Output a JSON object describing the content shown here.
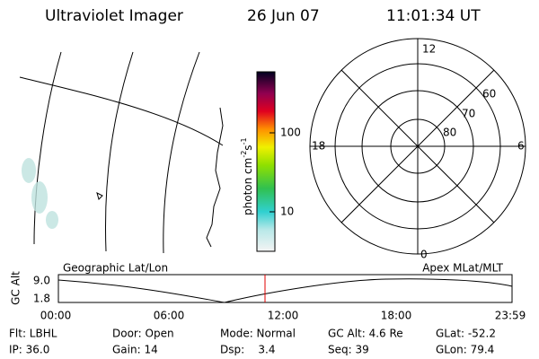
{
  "header": {
    "instrument": "Ultraviolet Imager",
    "date": "26 Jun 07",
    "time": "11:01:34 UT"
  },
  "colorbar": {
    "unit": "photon cm",
    "exp1": "-2",
    "unit2": "s",
    "exp2": "-1",
    "ticks": [
      "100",
      "10"
    ]
  },
  "polar": {
    "mlt_labels": [
      "12",
      "18",
      "6",
      "0"
    ],
    "lat_labels": [
      "60",
      "70",
      "80"
    ]
  },
  "orbit": {
    "left_label": "Geographic Lat/Lon",
    "right_label": "Apex MLat/MLT",
    "axis_label": "GC Alt",
    "yticks": [
      "9.0",
      "1.8"
    ],
    "xticks": [
      "00:00",
      "06:00",
      "12:00",
      "18:00",
      "23:59"
    ]
  },
  "info": {
    "rows": [
      [
        "Flt: LBHL",
        "Door: Open",
        "Mode: Normal",
        "GC Alt: 4.6 Re",
        "GLat: -52.2"
      ],
      [
        "IP: 36.0",
        "Gain: 14",
        "Dsp:    3.4",
        "Seq: 39",
        "GLon: 79.4"
      ]
    ]
  }
}
